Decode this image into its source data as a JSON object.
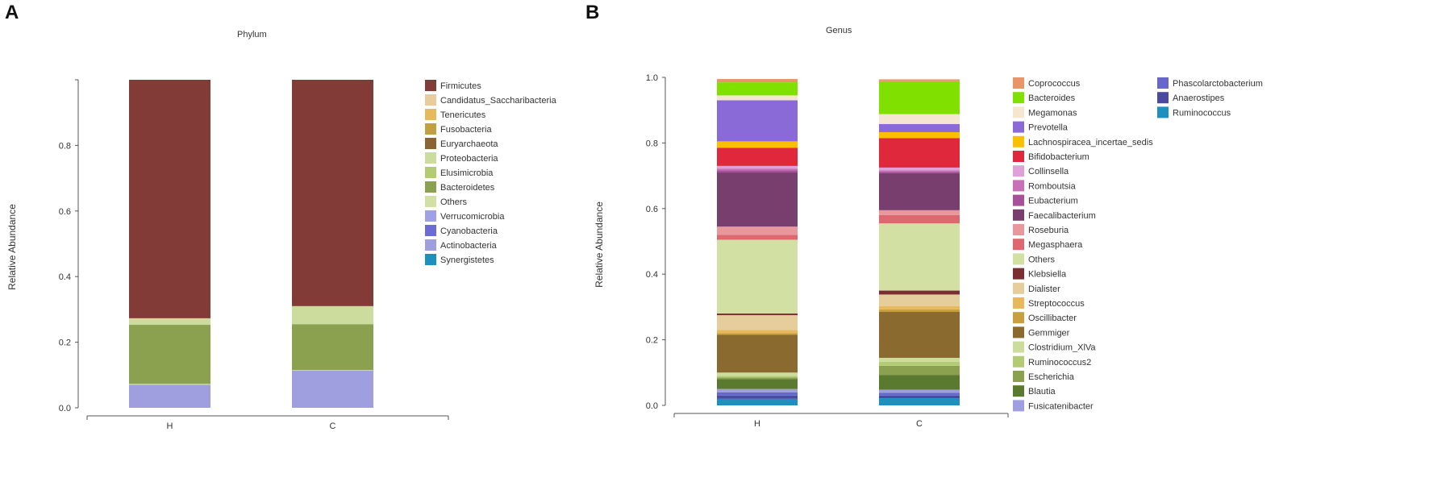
{
  "panels": [
    {
      "label": "A"
    },
    {
      "label": "B"
    }
  ],
  "chart_data": [
    {
      "type": "bar",
      "stacked": true,
      "title": "Phylum",
      "xlabel": "",
      "ylabel": "Relative Abundance",
      "ylim": [
        0,
        1.0
      ],
      "yticks": [
        "0.0",
        "0.2",
        "0.4",
        "0.6",
        "0.8"
      ],
      "categories": [
        "H",
        "C"
      ],
      "series": [
        {
          "name": "Synergistetes",
          "color": "#1e90c0",
          "values": [
            0.0,
            0.0
          ]
        },
        {
          "name": "Actinobacteria",
          "color": "#9f9fdf",
          "values": [
            0.07,
            0.113
          ]
        },
        {
          "name": "Cyanobacteria",
          "color": "#6b6bd6",
          "values": [
            0.0,
            0.0
          ]
        },
        {
          "name": "Verrucomicrobia",
          "color": "#a0a0e8",
          "values": [
            0.0,
            0.0
          ]
        },
        {
          "name": "Others",
          "color": "#d2e0a4",
          "values": [
            0.003,
            0.002
          ]
        },
        {
          "name": "Bacteroidetes",
          "color": "#8ba150",
          "values": [
            0.18,
            0.14
          ]
        },
        {
          "name": "Elusimicrobia",
          "color": "#b3cc73",
          "values": [
            0.0,
            0.0
          ]
        },
        {
          "name": "Proteobacteria",
          "color": "#cbdc9c",
          "values": [
            0.02,
            0.055
          ]
        },
        {
          "name": "Euryarchaeota",
          "color": "#8b6434",
          "values": [
            0.0,
            0.0
          ]
        },
        {
          "name": "Fusobacteria",
          "color": "#c0a040",
          "values": [
            0.0,
            0.0
          ]
        },
        {
          "name": "Tenericutes",
          "color": "#e8b85c",
          "values": [
            0.0,
            0.0
          ]
        },
        {
          "name": "Candidatus_Saccharibacteria",
          "color": "#e8cc9c",
          "values": [
            0.0,
            0.0
          ]
        },
        {
          "name": "Firmicutes",
          "color": "#833b38",
          "values": [
            0.727,
            0.69
          ]
        }
      ],
      "legend": {
        "position": "right",
        "entries": [
          {
            "name": "Firmicutes",
            "color": "#833b38"
          },
          {
            "name": "Candidatus_Saccharibacteria",
            "color": "#e8cc9c"
          },
          {
            "name": "Tenericutes",
            "color": "#e8b85c"
          },
          {
            "name": "Fusobacteria",
            "color": "#c0a040"
          },
          {
            "name": "Euryarchaeota",
            "color": "#8b6434"
          },
          {
            "name": "Proteobacteria",
            "color": "#cbdc9c"
          },
          {
            "name": "Elusimicrobia",
            "color": "#b3cc73"
          },
          {
            "name": "Bacteroidetes",
            "color": "#8ba150"
          },
          {
            "name": "Others",
            "color": "#d2e0a4"
          },
          {
            "name": "Verrucomicrobia",
            "color": "#a0a0e8"
          },
          {
            "name": "Cyanobacteria",
            "color": "#6b6bd6"
          },
          {
            "name": "Actinobacteria",
            "color": "#9f9fdf"
          },
          {
            "name": "Synergistetes",
            "color": "#1e90c0"
          }
        ]
      }
    },
    {
      "type": "bar",
      "stacked": true,
      "title": "Genus",
      "xlabel": "",
      "ylabel": "Relative Abundance",
      "ylim": [
        0,
        1.0
      ],
      "yticks": [
        "0.0",
        "0.2",
        "0.4",
        "0.6",
        "0.8",
        "1.0"
      ],
      "categories": [
        "H",
        "C"
      ],
      "series": [
        {
          "name": "Ruminococcus",
          "color": "#1e90c0",
          "values": [
            0.02,
            0.022
          ]
        },
        {
          "name": "Anaerostipes",
          "color": "#4a4aa0",
          "values": [
            0.01,
            0.008
          ]
        },
        {
          "name": "Phascolarctobacterium",
          "color": "#6666cc",
          "values": [
            0.01,
            0.008
          ]
        },
        {
          "name": "Fusicatenibacter",
          "color": "#9f9fdf",
          "values": [
            0.01,
            0.01
          ]
        },
        {
          "name": "Blautia",
          "color": "#5a7a30",
          "values": [
            0.03,
            0.045
          ]
        },
        {
          "name": "Escherichia",
          "color": "#8ba150",
          "values": [
            0.005,
            0.028
          ]
        },
        {
          "name": "Ruminococcus2",
          "color": "#b3cc73",
          "values": [
            0.005,
            0.012
          ]
        },
        {
          "name": "Clostridium_XlVa",
          "color": "#cbdc9c",
          "values": [
            0.01,
            0.012
          ]
        },
        {
          "name": "Gemmiger",
          "color": "#8b6a30",
          "values": [
            0.115,
            0.14
          ]
        },
        {
          "name": "Oscillibacter",
          "color": "#c8a040",
          "values": [
            0.005,
            0.008
          ]
        },
        {
          "name": "Streptococcus",
          "color": "#e8b85c",
          "values": [
            0.01,
            0.01
          ]
        },
        {
          "name": "Dialister",
          "color": "#e6cd9c",
          "values": [
            0.045,
            0.035
          ]
        },
        {
          "name": "Klebsiella",
          "color": "#7a3030",
          "values": [
            0.005,
            0.012
          ]
        },
        {
          "name": "Others",
          "color": "#d2e0a4",
          "values": [
            0.225,
            0.205
          ]
        },
        {
          "name": "Megasphaera",
          "color": "#dd6870",
          "values": [
            0.015,
            0.025
          ]
        },
        {
          "name": "Roseburia",
          "color": "#e8989c",
          "values": [
            0.025,
            0.015
          ]
        },
        {
          "name": "Faecalibacterium",
          "color": "#783f6e",
          "values": [
            0.165,
            0.113
          ]
        },
        {
          "name": "Eubacterium",
          "color": "#a8509a",
          "values": [
            0.007,
            0.005
          ]
        },
        {
          "name": "Romboutsia",
          "color": "#c870b8",
          "values": [
            0.005,
            0.004
          ]
        },
        {
          "name": "Collinsella",
          "color": "#e0a0d8",
          "values": [
            0.008,
            0.008
          ]
        },
        {
          "name": "Bifidobacterium",
          "color": "#e0283c",
          "values": [
            0.055,
            0.09
          ]
        },
        {
          "name": "Lachnospiracea_incertae_sedis",
          "color": "#f8c000",
          "values": [
            0.02,
            0.018
          ]
        },
        {
          "name": "Prevotella",
          "color": "#8a6ad6",
          "values": [
            0.125,
            0.025
          ]
        },
        {
          "name": "Megamonas",
          "color": "#f5e6d2",
          "values": [
            0.015,
            0.03
          ]
        },
        {
          "name": "Bacteroides",
          "color": "#80e000",
          "values": [
            0.04,
            0.1
          ]
        },
        {
          "name": "Coprococcus",
          "color": "#e8956a",
          "values": [
            0.01,
            0.006
          ]
        }
      ],
      "legend": {
        "position": "right",
        "entries": [
          {
            "name": "Coprococcus",
            "color": "#e8956a"
          },
          {
            "name": "Bacteroides",
            "color": "#80e000"
          },
          {
            "name": "Megamonas",
            "color": "#f5e6d2"
          },
          {
            "name": "Prevotella",
            "color": "#8a6ad6"
          },
          {
            "name": "Lachnospiracea_incertae_sedis",
            "color": "#f8c000"
          },
          {
            "name": "Bifidobacterium",
            "color": "#e0283c"
          },
          {
            "name": "Collinsella",
            "color": "#e0a0d8"
          },
          {
            "name": "Romboutsia",
            "color": "#c870b8"
          },
          {
            "name": "Eubacterium",
            "color": "#a8509a"
          },
          {
            "name": "Faecalibacterium",
            "color": "#783f6e"
          },
          {
            "name": "Roseburia",
            "color": "#e8989c"
          },
          {
            "name": "Megasphaera",
            "color": "#dd6870"
          },
          {
            "name": "Others",
            "color": "#d2e0a4"
          },
          {
            "name": "Klebsiella",
            "color": "#7a3030"
          },
          {
            "name": "Dialister",
            "color": "#e6cd9c"
          },
          {
            "name": "Streptococcus",
            "color": "#e8b85c"
          },
          {
            "name": "Oscillibacter",
            "color": "#c8a040"
          },
          {
            "name": "Gemmiger",
            "color": "#8b6a30"
          },
          {
            "name": "Clostridium_XlVa",
            "color": "#cbdc9c"
          },
          {
            "name": "Ruminococcus2",
            "color": "#b3cc73"
          },
          {
            "name": "Escherichia",
            "color": "#8ba150"
          },
          {
            "name": "Blautia",
            "color": "#5a7a30"
          },
          {
            "name": "Fusicatenibacter",
            "color": "#9f9fdf"
          },
          {
            "name": "Phascolarctobacterium",
            "color": "#6666cc"
          },
          {
            "name": "Anaerostipes",
            "color": "#4a4aa0"
          },
          {
            "name": "Ruminococcus",
            "color": "#1e90c0"
          }
        ]
      }
    }
  ]
}
